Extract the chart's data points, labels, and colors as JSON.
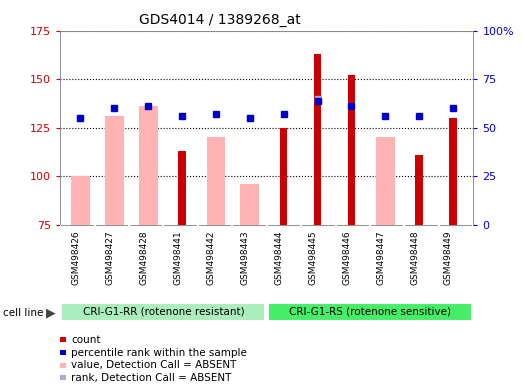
{
  "title": "GDS4014 / 1389268_at",
  "samples": [
    "GSM498426",
    "GSM498427",
    "GSM498428",
    "GSM498441",
    "GSM498442",
    "GSM498443",
    "GSM498444",
    "GSM498445",
    "GSM498446",
    "GSM498447",
    "GSM498448",
    "GSM498449"
  ],
  "group1_label": "CRI-G1-RR (rotenone resistant)",
  "group2_label": "CRI-G1-RS (rotenone sensitive)",
  "group1_count": 6,
  "group2_count": 6,
  "ylim_left": [
    75,
    175
  ],
  "ylim_right": [
    0,
    100
  ],
  "yticks_left": [
    75,
    100,
    125,
    150,
    175
  ],
  "yticks_right": [
    0,
    25,
    50,
    75,
    100
  ],
  "count_values": [
    null,
    null,
    null,
    113,
    null,
    null,
    125,
    163,
    152,
    null,
    111,
    130
  ],
  "rank_values": [
    130,
    135,
    136,
    131,
    132,
    130,
    132,
    139,
    136,
    131,
    131,
    135
  ],
  "value_absent": [
    100,
    131,
    136,
    null,
    120,
    96,
    null,
    null,
    null,
    120,
    null,
    null
  ],
  "rank_absent": [
    130,
    null,
    null,
    null,
    null,
    130,
    null,
    140,
    null,
    null,
    null,
    null
  ],
  "count_color": "#cc0000",
  "rank_color": "#0000cc",
  "value_absent_color": "#ffb3b3",
  "rank_absent_color": "#aaaadd",
  "marker_size": 5,
  "dotted_grid_color": "#000000",
  "plot_bg_color": "#ffffff",
  "xlabel_bg_color": "#d8d8d8",
  "group1_bg": "#aaeebb",
  "group2_bg": "#44ee66",
  "legend_items": [
    {
      "label": "count",
      "color": "#cc0000"
    },
    {
      "label": "percentile rank within the sample",
      "color": "#0000cc"
    },
    {
      "label": "value, Detection Call = ABSENT",
      "color": "#ffb3b3"
    },
    {
      "label": "rank, Detection Call = ABSENT",
      "color": "#aaaadd"
    }
  ]
}
